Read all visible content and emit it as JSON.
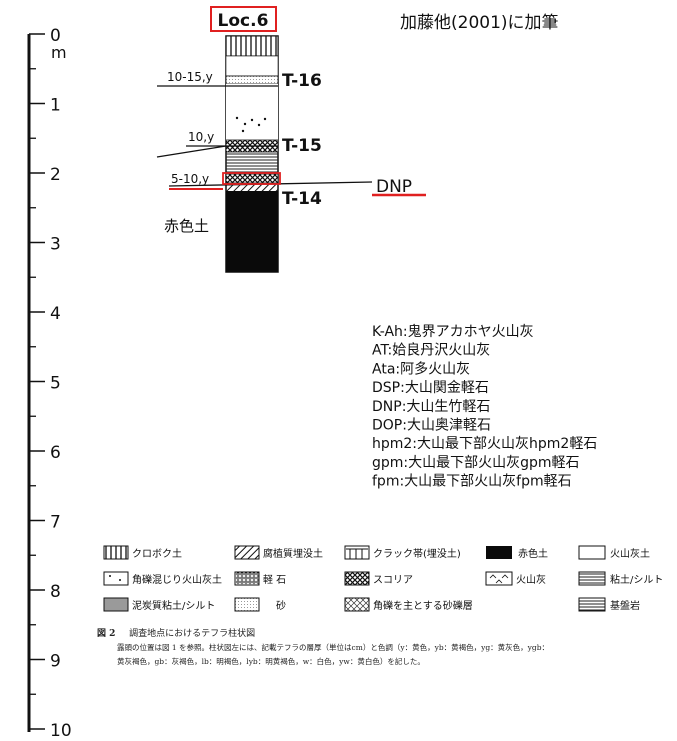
{
  "header": {
    "location_label": "Loc.6",
    "source_note": "加藤他(2001)に加筆",
    "location_box_color": "#e02020"
  },
  "scale": {
    "unit": "m",
    "ticks": [
      "0",
      "1",
      "2",
      "3",
      "4",
      "5",
      "6",
      "7",
      "8",
      "9",
      "10"
    ]
  },
  "column": {
    "tephra_markers": [
      {
        "id": "T-16",
        "thickness": "10-15,y"
      },
      {
        "id": "T-15",
        "thickness": "10,y"
      },
      {
        "id": "T-14",
        "thickness": "5-10,y"
      }
    ],
    "highlight": {
      "label": "DNP",
      "color": "#e02020"
    },
    "red_soil_label": "赤色土"
  },
  "abbreviations": [
    "K-Ah:鬼界アカホヤ火山灰",
    "AT:姶良丹沢火山灰",
    "Ata:阿多火山灰",
    "DSP:大山関金軽石",
    "DNP:大山生竹軽石",
    "DOP:大山奥津軽石",
    "hpm2:大山最下部火山灰hpm2軽石",
    "gpm:大山最下部火山灰gpm軽石",
    "fpm:大山最下部火山灰fpm軽石"
  ],
  "legend": {
    "rows": [
      [
        "クロボク土",
        "腐植質埋没土",
        "クラック帯(埋没土)",
        "赤色土",
        "火山灰土"
      ],
      [
        "角礫混じり火山灰土",
        "軽 石",
        "スコリア",
        "火山灰",
        "粘土/シルト"
      ],
      [
        "泥炭質粘土/シルト",
        "砂",
        "角礫を主とする砂礫層",
        "基盤岩"
      ]
    ]
  },
  "caption": {
    "number": "図 2",
    "title": "調査地点におけるテフラ柱状図",
    "line1": "露頭の位置は図 1 を参照。柱状図左には、記載テフラの層厚（単位はcm）と色調（y：黄色，yb：黄褐色，yg：黄灰色，ygb：",
    "line2": "黄灰褐色，gb：灰褐色，lb：明褐色，lyb：明黄褐色，w：白色，yw：黄白色）を記した。"
  }
}
